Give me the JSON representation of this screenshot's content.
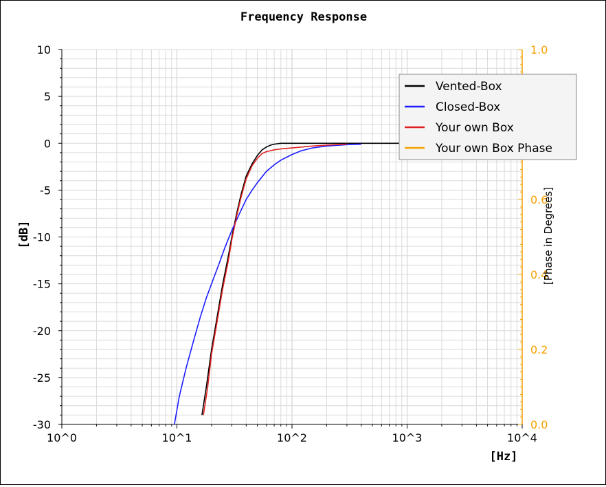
{
  "chart_data": {
    "type": "line",
    "title": "Frequency Response",
    "xlabel": "[Hz]",
    "ylabel": "[dB]",
    "y2label": "[Phase in Degrees]",
    "x_scale": "log",
    "xlim": [
      1,
      10000
    ],
    "ylim": [
      -30,
      10
    ],
    "y2lim": [
      0.0,
      1.0
    ],
    "x_ticks": [
      1,
      10,
      100,
      1000,
      10000
    ],
    "x_tick_labels": [
      "10^0",
      "10^1",
      "10^2",
      "10^3",
      "10^4"
    ],
    "y_ticks": [
      10,
      5,
      0,
      -5,
      -10,
      -15,
      -20,
      -25,
      -30
    ],
    "y_tick_labels": [
      "10",
      "5",
      "0",
      "-5",
      "-10",
      "-15",
      "-20",
      "-25",
      "-30"
    ],
    "y2_ticks": [
      1.0,
      0.8,
      0.6,
      0.4,
      0.2,
      0.0
    ],
    "y2_tick_labels": [
      "1.0",
      "0.8",
      "0.6",
      "0.4",
      "0.2",
      "0.0"
    ],
    "grid": true,
    "legend_position": "top-right",
    "colors": {
      "axis_right": "#f5a000",
      "grid": "#d9d9d9"
    },
    "series": [
      {
        "name": "Vented-Box",
        "color": "#000000",
        "x": [
          16.5,
          18,
          20,
          22,
          25,
          28,
          30,
          33,
          36,
          40,
          45,
          50,
          55,
          60,
          65,
          70,
          80,
          100,
          150,
          200,
          300,
          400,
          600,
          1000
        ],
        "y": [
          -29,
          -26,
          -22,
          -19,
          -15,
          -12,
          -10,
          -7.5,
          -5.5,
          -3.5,
          -2.2,
          -1.3,
          -0.7,
          -0.4,
          -0.2,
          -0.1,
          0,
          0,
          0,
          0,
          0,
          0,
          0,
          0
        ]
      },
      {
        "name": "Closed-Box",
        "color": "#1a1aff",
        "x": [
          9.5,
          10.5,
          12,
          14,
          16,
          18,
          20,
          23,
          26,
          30,
          35,
          40,
          45,
          50,
          60,
          70,
          80,
          100,
          120,
          150,
          200,
          300,
          400
        ],
        "y": [
          -30,
          -27,
          -24,
          -21,
          -18.5,
          -16.5,
          -15,
          -13,
          -11.2,
          -9.3,
          -7.5,
          -6.0,
          -5.0,
          -4.2,
          -3.0,
          -2.3,
          -1.8,
          -1.2,
          -0.8,
          -0.5,
          -0.3,
          -0.15,
          -0.1
        ]
      },
      {
        "name": "Your own Box",
        "color": "#e02020",
        "x": [
          17,
          18.5,
          20,
          22,
          25,
          28,
          30,
          33,
          36,
          40,
          45,
          50,
          55,
          60,
          70,
          80,
          100,
          150,
          200,
          300
        ],
        "y": [
          -29,
          -26,
          -22.5,
          -19.5,
          -15.5,
          -12.5,
          -10.3,
          -7.8,
          -5.8,
          -3.8,
          -2.4,
          -1.6,
          -1.1,
          -0.9,
          -0.7,
          -0.6,
          -0.5,
          -0.3,
          -0.2,
          -0.1
        ]
      },
      {
        "name": "Your own Box Phase",
        "color": "#f5a000",
        "x": [],
        "y": []
      }
    ]
  }
}
